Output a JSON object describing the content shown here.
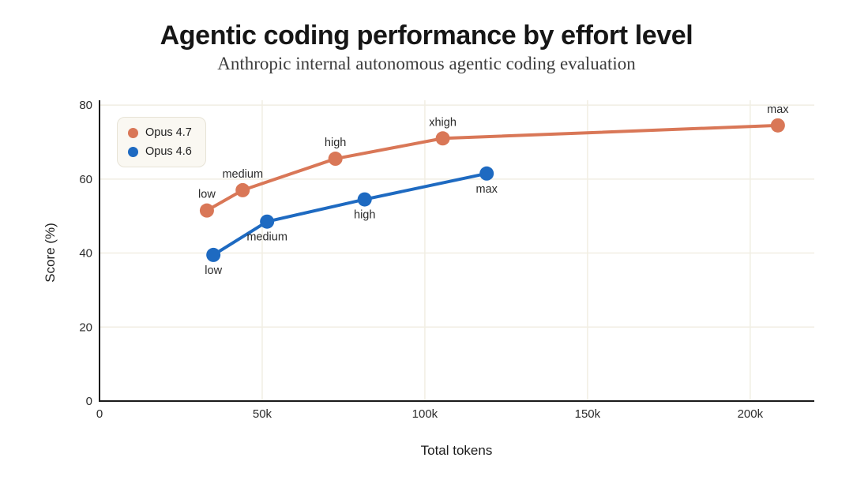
{
  "chart_data": {
    "type": "line",
    "title": "Agentic coding performance by effort level",
    "subtitle": "Anthropic internal autonomous agentic coding evaluation",
    "xlabel": "Total tokens",
    "ylabel": "Score (%)",
    "xlim": [
      0,
      219700
    ],
    "ylim": [
      0,
      81.3
    ],
    "grid": true,
    "grid_color": "#f1eee3",
    "axis_color": "#1a1a1a",
    "legend_position": "upper-left",
    "x_ticks": [
      {
        "value": 0,
        "label": "0"
      },
      {
        "value": 50000,
        "label": "50k"
      },
      {
        "value": 100000,
        "label": "100k"
      },
      {
        "value": 150000,
        "label": "150k"
      },
      {
        "value": 200000,
        "label": "200k"
      }
    ],
    "y_ticks": [
      {
        "value": 0,
        "label": "0"
      },
      {
        "value": 20,
        "label": "20"
      },
      {
        "value": 40,
        "label": "40"
      },
      {
        "value": 60,
        "label": "60"
      },
      {
        "value": 80,
        "label": "80"
      }
    ],
    "series": [
      {
        "name": "Opus 4.7",
        "color": "#d97757",
        "label_side": "above",
        "points": [
          {
            "x": 33000,
            "y": 51.5,
            "label": "low"
          },
          {
            "x": 44000,
            "y": 57.0,
            "label": "medium"
          },
          {
            "x": 72500,
            "y": 65.5,
            "label": "high"
          },
          {
            "x": 105500,
            "y": 71.0,
            "label": "xhigh"
          },
          {
            "x": 208500,
            "y": 74.5,
            "label": "max"
          }
        ]
      },
      {
        "name": "Opus 4.6",
        "color": "#1e6ac1",
        "label_side": "below",
        "points": [
          {
            "x": 35000,
            "y": 39.5,
            "label": "low"
          },
          {
            "x": 51500,
            "y": 48.5,
            "label": "medium"
          },
          {
            "x": 81500,
            "y": 54.5,
            "label": "high"
          },
          {
            "x": 119000,
            "y": 61.5,
            "label": "max"
          }
        ]
      }
    ]
  }
}
